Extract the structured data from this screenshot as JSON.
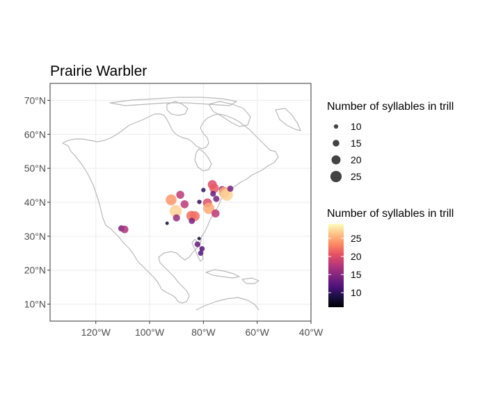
{
  "chart_data": {
    "type": "scatter",
    "title": "Prairie Warbler",
    "x_ticks": [
      "120°W",
      "100°W",
      "80°W",
      "60°W",
      "40°W"
    ],
    "y_ticks": [
      "10°N",
      "20°N",
      "30°N",
      "40°N",
      "50°N",
      "60°N",
      "70°N"
    ],
    "xlim": [
      -137,
      -40
    ],
    "ylim": [
      5,
      75
    ],
    "grid": true,
    "legend_size": {
      "title": "Number of syllables in trill",
      "labels": [
        "10",
        "15",
        "20",
        "25"
      ]
    },
    "legend_color": {
      "title": "Number of syllables in trill",
      "labels": [
        "25",
        "20",
        "15",
        "10"
      ],
      "range": [
        6,
        29
      ]
    },
    "points": [
      {
        "lon": -110.5,
        "lat": 32.3,
        "value": 14
      },
      {
        "lon": -109.3,
        "lat": 32.0,
        "value": 17
      },
      {
        "lon": -93.5,
        "lat": 33.8,
        "value": 8
      },
      {
        "lon": -92.0,
        "lat": 40.7,
        "value": 24
      },
      {
        "lon": -90.3,
        "lat": 37.4,
        "value": 27
      },
      {
        "lon": -88.6,
        "lat": 42.2,
        "value": 18
      },
      {
        "lon": -90.0,
        "lat": 35.4,
        "value": 16
      },
      {
        "lon": -87.0,
        "lat": 39.4,
        "value": 18
      },
      {
        "lon": -84.5,
        "lat": 36.0,
        "value": 22
      },
      {
        "lon": -83.2,
        "lat": 35.9,
        "value": 22
      },
      {
        "lon": -84.3,
        "lat": 34.5,
        "value": 14
      },
      {
        "lon": -81.5,
        "lat": 40.1,
        "value": 10
      },
      {
        "lon": -80.0,
        "lat": 43.6,
        "value": 10
      },
      {
        "lon": -78.5,
        "lat": 39.8,
        "value": 20
      },
      {
        "lon": -78.0,
        "lat": 38.2,
        "value": 25
      },
      {
        "lon": -76.7,
        "lat": 45.2,
        "value": 20
      },
      {
        "lon": -76.0,
        "lat": 44.1,
        "value": 21
      },
      {
        "lon": -76.4,
        "lat": 42.5,
        "value": 13
      },
      {
        "lon": -75.2,
        "lat": 41.0,
        "value": 14
      },
      {
        "lon": -75.5,
        "lat": 36.7,
        "value": 18
      },
      {
        "lon": -73.0,
        "lat": 43.8,
        "value": 15
      },
      {
        "lon": -72.2,
        "lat": 42.9,
        "value": 25
      },
      {
        "lon": -71.3,
        "lat": 42.2,
        "value": 27
      },
      {
        "lon": -70.0,
        "lat": 44.0,
        "value": 14
      },
      {
        "lon": -81.6,
        "lat": 29.3,
        "value": 8
      },
      {
        "lon": -82.2,
        "lat": 27.6,
        "value": 13
      },
      {
        "lon": -80.5,
        "lat": 26.3,
        "value": 12
      },
      {
        "lon": -81.0,
        "lat": 25.0,
        "value": 12
      }
    ]
  }
}
